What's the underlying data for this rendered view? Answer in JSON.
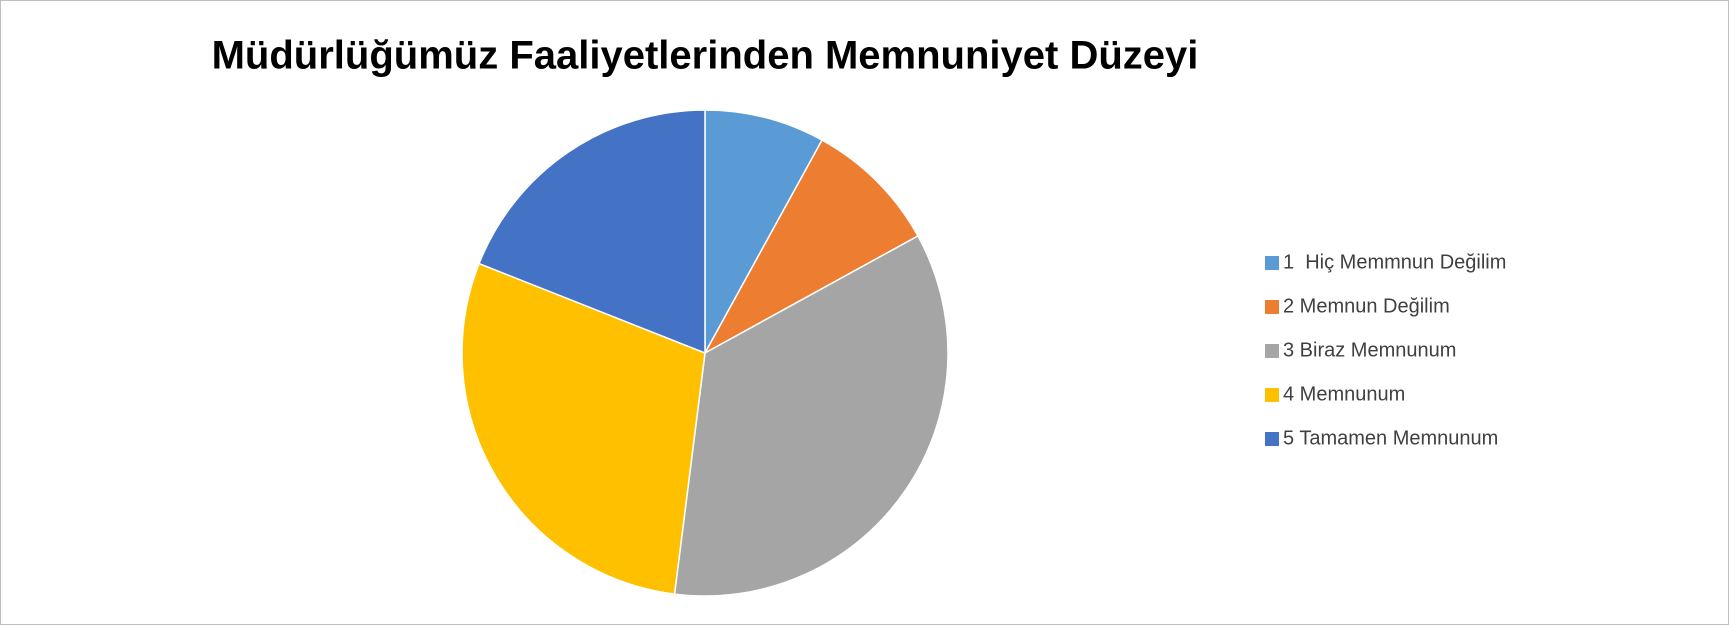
{
  "chart_data": {
    "type": "pie",
    "title": "Müdürlüğümüz Faaliyetlerinden Memnuniyet Düzeyi",
    "categories": [
      "1  Hiç Memmnun Değilim",
      "2 Memnun Değilim",
      "3 Biraz Memnunum",
      "4 Memnunum",
      "5 Tamamen Memnunum"
    ],
    "values": [
      8,
      9,
      35,
      29,
      19
    ],
    "colors": [
      "#5b9bd5",
      "#ed7d31",
      "#a5a5a5",
      "#ffc000",
      "#4472c4"
    ],
    "legend": "right"
  }
}
